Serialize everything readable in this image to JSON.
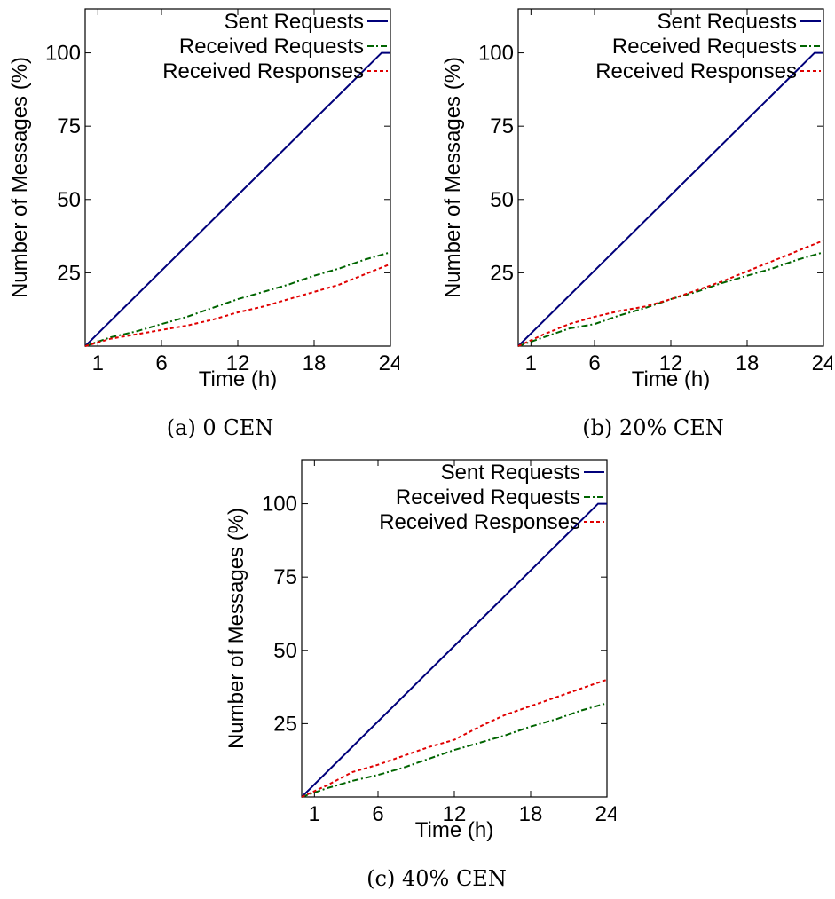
{
  "chart_data": [
    {
      "type": "line",
      "caption": "(a) 0 CEN",
      "xlabel": "Time (h)",
      "ylabel": "Number of Messages (%)",
      "xlim": [
        0,
        24
      ],
      "ylim": [
        0,
        115
      ],
      "xticks": [
        1,
        6,
        12,
        18,
        24
      ],
      "yticks": [
        25,
        50,
        75,
        100
      ],
      "legend_position": "top-right",
      "series": [
        {
          "name": "Sent Requests",
          "color": "#00007a",
          "dash": "solid",
          "x": [
            0,
            23.3,
            24
          ],
          "y": [
            0,
            100,
            100
          ]
        },
        {
          "name": "Received Requests",
          "color": "#006400",
          "dash": "dashdot",
          "x": [
            0,
            2,
            4,
            6,
            8,
            10,
            12,
            14,
            16,
            18,
            20,
            22,
            24
          ],
          "y": [
            0,
            3,
            5,
            7.5,
            10,
            13,
            16,
            18.5,
            21,
            24,
            26.5,
            29.5,
            32
          ]
        },
        {
          "name": "Received Responses",
          "color": "#e00000",
          "dash": "dashed",
          "x": [
            0,
            2,
            4,
            6,
            8,
            10,
            12,
            14,
            16,
            18,
            20,
            22,
            24
          ],
          "y": [
            0,
            2.5,
            4,
            5.5,
            7,
            9,
            11.5,
            13.5,
            16,
            18.5,
            21,
            24.5,
            28
          ]
        }
      ]
    },
    {
      "type": "line",
      "caption": "(b) 20% CEN",
      "xlabel": "Time (h)",
      "ylabel": "Number of Messages (%)",
      "xlim": [
        0,
        24
      ],
      "ylim": [
        0,
        115
      ],
      "xticks": [
        1,
        6,
        12,
        18,
        24
      ],
      "yticks": [
        25,
        50,
        75,
        100
      ],
      "legend_position": "top-right",
      "series": [
        {
          "name": "Sent Requests",
          "color": "#00007a",
          "dash": "solid",
          "x": [
            0,
            23.3,
            24
          ],
          "y": [
            0,
            100,
            100
          ]
        },
        {
          "name": "Received Requests",
          "color": "#006400",
          "dash": "dashdot",
          "x": [
            0,
            2,
            4,
            6,
            8,
            10,
            12,
            14,
            16,
            18,
            20,
            22,
            24
          ],
          "y": [
            0,
            3,
            6,
            7.5,
            10.5,
            13,
            16,
            18.5,
            21.5,
            24,
            26.5,
            29.5,
            32
          ]
        },
        {
          "name": "Received Responses",
          "color": "#e00000",
          "dash": "dashed",
          "x": [
            0,
            2,
            4,
            6,
            8,
            10,
            12,
            14,
            16,
            18,
            20,
            22,
            24
          ],
          "y": [
            0,
            4,
            7.5,
            10,
            12,
            13.5,
            16,
            19,
            22,
            25.5,
            29,
            32.5,
            36
          ]
        }
      ]
    },
    {
      "type": "line",
      "caption": "(c) 40% CEN",
      "xlabel": "Time (h)",
      "ylabel": "Number of Messages (%)",
      "xlim": [
        0,
        24
      ],
      "ylim": [
        0,
        115
      ],
      "xticks": [
        1,
        6,
        12,
        18,
        24
      ],
      "yticks": [
        25,
        50,
        75,
        100
      ],
      "legend_position": "top-right",
      "series": [
        {
          "name": "Sent Requests",
          "color": "#00007a",
          "dash": "solid",
          "x": [
            0,
            23.3,
            24
          ],
          "y": [
            0,
            100,
            100
          ]
        },
        {
          "name": "Received Requests",
          "color": "#006400",
          "dash": "dashdot",
          "x": [
            0,
            2,
            4,
            6,
            8,
            10,
            12,
            14,
            16,
            18,
            20,
            22,
            24
          ],
          "y": [
            0,
            3,
            5.5,
            7.5,
            10,
            13,
            16,
            18.5,
            21,
            24,
            26.5,
            29.5,
            32
          ]
        },
        {
          "name": "Received Responses",
          "color": "#e00000",
          "dash": "dashed",
          "x": [
            0,
            2,
            4,
            6,
            8,
            10,
            12,
            14,
            16,
            18,
            20,
            22,
            24
          ],
          "y": [
            0,
            4,
            8.5,
            11,
            14,
            17,
            19.5,
            24,
            28,
            31,
            34,
            37,
            40
          ]
        }
      ]
    }
  ]
}
